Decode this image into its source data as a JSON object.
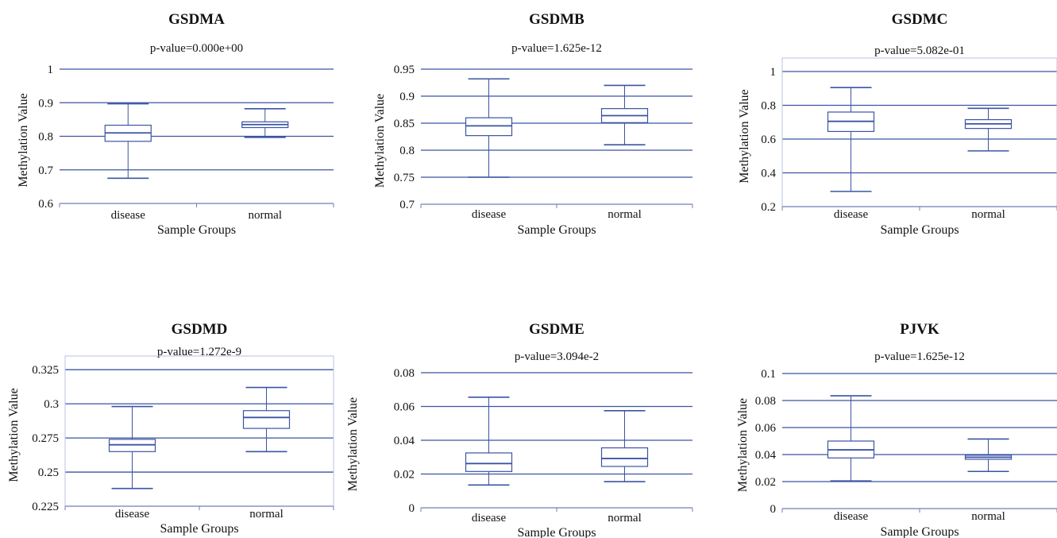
{
  "chart_data": [
    {
      "type": "box",
      "title": "GSDMA",
      "subtitle": "p-value=0.000e+00",
      "xlabel": "Sample Groups",
      "ylabel": "Methylation Value",
      "ylim": [
        0.6,
        1
      ],
      "yticks": [
        0.6,
        0.7,
        0.8,
        0.9,
        1
      ],
      "ytick_labels": [
        "0.6",
        "0.7",
        "0.8",
        "0.9",
        "1"
      ],
      "grid": true,
      "categories": [
        "disease",
        "normal"
      ],
      "boxes": [
        {
          "min": 0.675,
          "q1": 0.785,
          "median": 0.81,
          "q3": 0.833,
          "max": 0.897
        },
        {
          "min": 0.797,
          "q1": 0.826,
          "median": 0.835,
          "q3": 0.843,
          "max": 0.882
        }
      ]
    },
    {
      "type": "box",
      "title": "GSDMB",
      "subtitle": "p-value=1.625e-12",
      "xlabel": "Sample Groups",
      "ylabel": "Methylation Value",
      "ylim": [
        0.7,
        0.95
      ],
      "yticks": [
        0.7,
        0.75,
        0.8,
        0.85,
        0.9,
        0.95
      ],
      "ytick_labels": [
        "0.7",
        "0.75",
        "0.8",
        "0.85",
        "0.9",
        "0.95"
      ],
      "grid": true,
      "categories": [
        "disease",
        "normal"
      ],
      "boxes": [
        {
          "min": 0.75,
          "q1": 0.827,
          "median": 0.845,
          "q3": 0.86,
          "max": 0.932
        },
        {
          "min": 0.81,
          "q1": 0.851,
          "median": 0.864,
          "q3": 0.877,
          "max": 0.92
        }
      ]
    },
    {
      "type": "box",
      "title": "GSDMC",
      "subtitle": "p-value=5.082e-01",
      "xlabel": "Sample Groups",
      "ylabel": "Methylation Value",
      "ylim": [
        0.2,
        1.08
      ],
      "yticks": [
        0.2,
        0.4,
        0.6,
        0.8,
        1
      ],
      "ytick_labels": [
        "0.2",
        "0.4",
        "0.6",
        "0.8",
        "1"
      ],
      "grid": true,
      "categories": [
        "disease",
        "normal"
      ],
      "boxes": [
        {
          "min": 0.29,
          "q1": 0.645,
          "median": 0.705,
          "q3": 0.76,
          "max": 0.905
        },
        {
          "min": 0.53,
          "q1": 0.663,
          "median": 0.69,
          "q3": 0.715,
          "max": 0.782
        }
      ]
    },
    {
      "type": "box",
      "title": "GSDMD",
      "subtitle": "p-value=1.272e-9",
      "xlabel": "Sample Groups",
      "ylabel": "Methylation Value",
      "ylim": [
        0.225,
        0.335
      ],
      "yticks": [
        0.225,
        0.25,
        0.275,
        0.3,
        0.325
      ],
      "ytick_labels": [
        "0.225",
        "0.25",
        "0.275",
        "0.3",
        "0.325"
      ],
      "grid": true,
      "categories": [
        "disease",
        "normal"
      ],
      "boxes": [
        {
          "min": 0.238,
          "q1": 0.265,
          "median": 0.27,
          "q3": 0.274,
          "max": 0.298
        },
        {
          "min": 0.265,
          "q1": 0.282,
          "median": 0.29,
          "q3": 0.295,
          "max": 0.312
        }
      ]
    },
    {
      "type": "box",
      "title": "GSDME",
      "subtitle": "p-value=3.094e-2",
      "xlabel": "Sample Groups",
      "ylabel": "Methylation Value",
      "ylim": [
        0,
        0.08
      ],
      "yticks": [
        0,
        0.02,
        0.04,
        0.06,
        0.08
      ],
      "ytick_labels": [
        "0",
        "0.02",
        "0.04",
        "0.06",
        "0.08"
      ],
      "grid": true,
      "categories": [
        "disease",
        "normal"
      ],
      "boxes": [
        {
          "min": 0.0135,
          "q1": 0.0215,
          "median": 0.0262,
          "q3": 0.0325,
          "max": 0.0655
        },
        {
          "min": 0.0155,
          "q1": 0.0245,
          "median": 0.0292,
          "q3": 0.0355,
          "max": 0.0575
        }
      ]
    },
    {
      "type": "box",
      "title": "PJVK",
      "subtitle": "p-value=1.625e-12",
      "xlabel": "Sample Groups",
      "ylabel": "Methylation Value",
      "ylim": [
        0,
        0.1
      ],
      "yticks": [
        0,
        0.02,
        0.04,
        0.06,
        0.08,
        0.1
      ],
      "ytick_labels": [
        "0",
        "0.02",
        "0.04",
        "0.06",
        "0.08",
        "0.1"
      ],
      "grid": true,
      "categories": [
        "disease",
        "normal"
      ],
      "boxes": [
        {
          "min": 0.0205,
          "q1": 0.0375,
          "median": 0.0435,
          "q3": 0.05,
          "max": 0.0835
        },
        {
          "min": 0.0275,
          "q1": 0.0365,
          "median": 0.038,
          "q3": 0.0395,
          "max": 0.0515
        }
      ]
    }
  ],
  "colors": {
    "grid": "#3b54a3",
    "box": "#3b54a3",
    "axis": "#6f7fb8",
    "text": "#111111"
  }
}
